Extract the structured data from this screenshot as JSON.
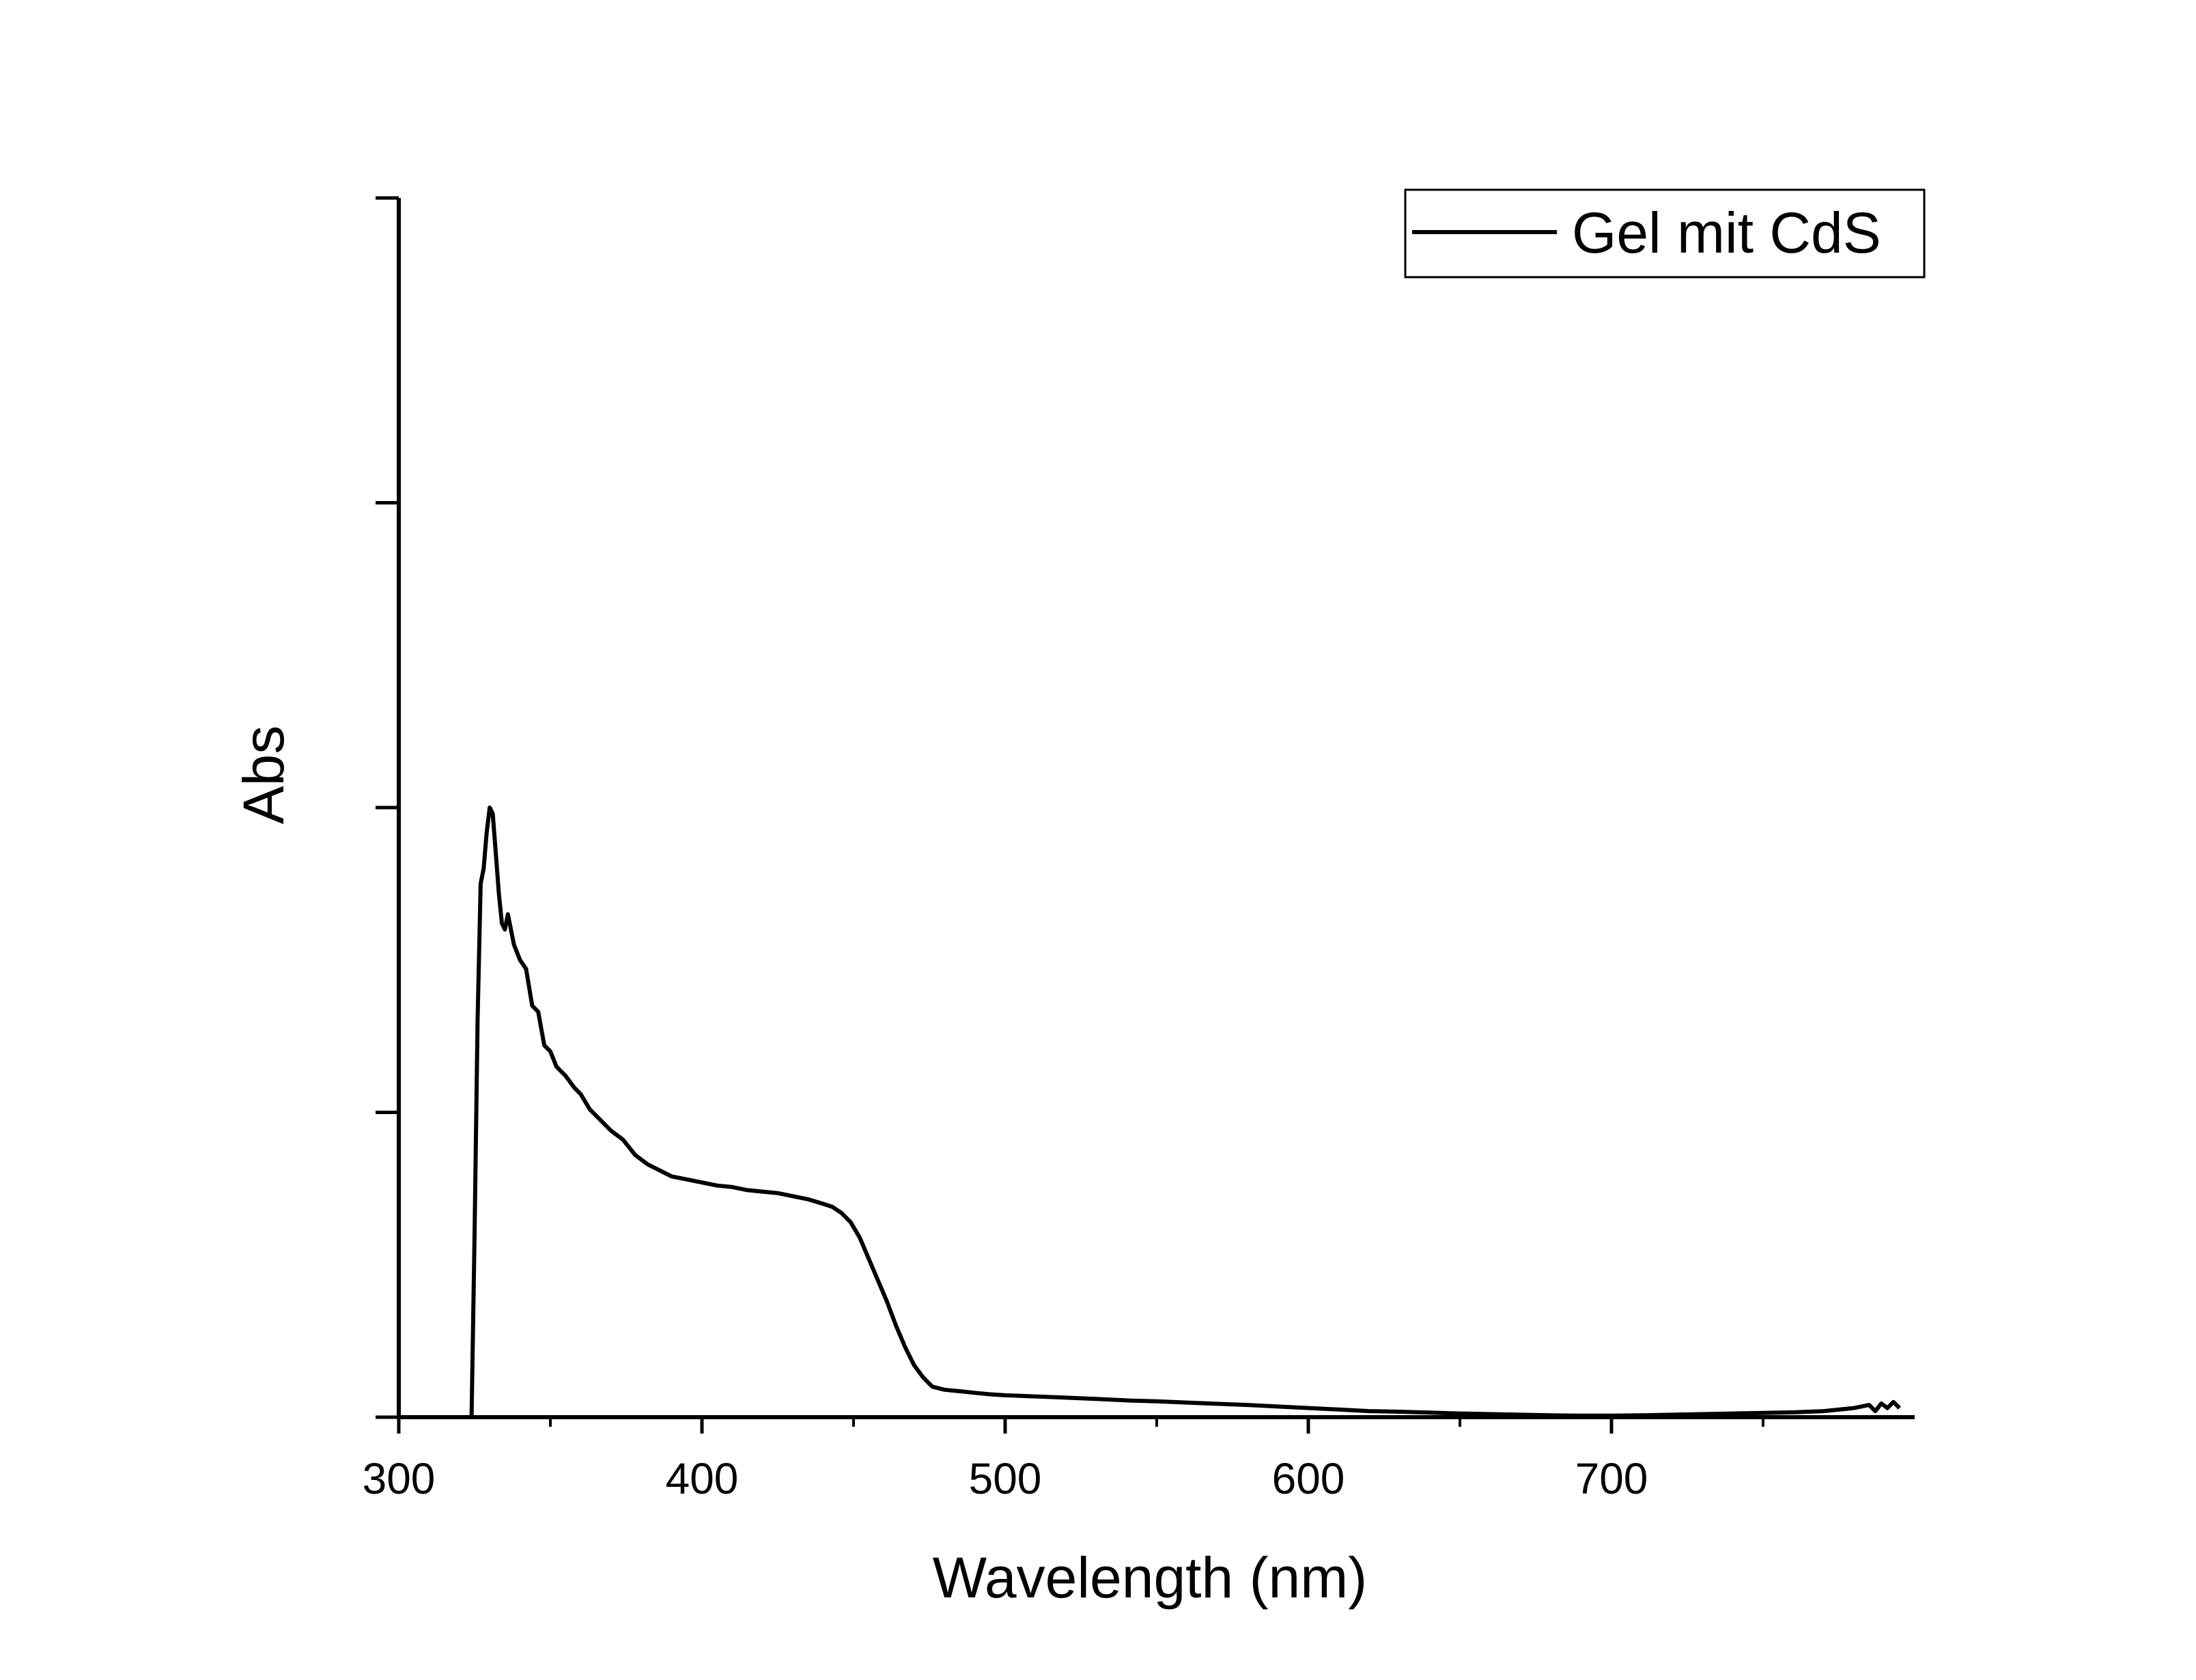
{
  "chart_data": {
    "type": "line",
    "title": "",
    "xlabel": "Wavelength (nm)",
    "ylabel": "Abs",
    "xlim": [
      300,
      800
    ],
    "ylim": [
      0,
      4
    ],
    "x_ticks": [
      300,
      400,
      500,
      600,
      700
    ],
    "x_minor_ticks": [
      350,
      450,
      550,
      650,
      750
    ],
    "y_ticks": [
      0,
      1,
      2,
      3,
      4
    ],
    "y_tick_labels_shown": false,
    "grid": false,
    "legend": {
      "position": "top-right",
      "entries": [
        "Gel mit CdS"
      ]
    },
    "line_color": "#000000",
    "series": [
      {
        "name": "Gel mit CdS",
        "x": [
          324,
          325,
          326,
          327,
          328,
          329,
          330,
          331,
          332,
          333,
          334,
          335,
          336,
          338,
          340,
          342,
          344,
          346,
          348,
          350,
          352,
          355,
          358,
          360,
          363,
          366,
          370,
          374,
          378,
          382,
          386,
          390,
          395,
          400,
          405,
          410,
          415,
          420,
          425,
          430,
          435,
          440,
          443,
          446,
          449,
          452,
          455,
          458,
          461,
          464,
          467,
          470,
          473,
          476,
          480,
          485,
          490,
          495,
          500,
          510,
          520,
          530,
          540,
          550,
          560,
          570,
          580,
          590,
          600,
          610,
          620,
          630,
          640,
          650,
          660,
          670,
          680,
          690,
          700,
          710,
          720,
          730,
          740,
          750,
          760,
          770,
          780,
          785,
          787,
          789,
          791,
          793,
          795
        ],
        "y": [
          0.0,
          0.6,
          1.3,
          1.75,
          1.8,
          1.92,
          2.0,
          1.98,
          1.85,
          1.72,
          1.62,
          1.6,
          1.65,
          1.55,
          1.5,
          1.47,
          1.35,
          1.33,
          1.22,
          1.2,
          1.15,
          1.12,
          1.08,
          1.06,
          1.01,
          0.98,
          0.94,
          0.91,
          0.86,
          0.83,
          0.81,
          0.79,
          0.78,
          0.77,
          0.76,
          0.755,
          0.745,
          0.74,
          0.735,
          0.725,
          0.715,
          0.7,
          0.69,
          0.67,
          0.64,
          0.59,
          0.52,
          0.45,
          0.38,
          0.3,
          0.23,
          0.17,
          0.13,
          0.1,
          0.09,
          0.085,
          0.08,
          0.075,
          0.072,
          0.068,
          0.064,
          0.06,
          0.055,
          0.052,
          0.048,
          0.044,
          0.04,
          0.035,
          0.03,
          0.025,
          0.02,
          0.018,
          0.015,
          0.012,
          0.01,
          0.008,
          0.006,
          0.005,
          0.005,
          0.006,
          0.008,
          0.01,
          0.012,
          0.014,
          0.016,
          0.02,
          0.03,
          0.04,
          0.02,
          0.045,
          0.03,
          0.05,
          0.03
        ]
      }
    ]
  }
}
